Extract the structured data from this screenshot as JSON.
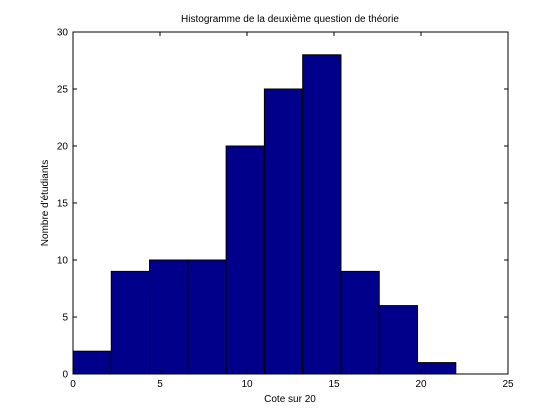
{
  "chart_data": {
    "type": "bar",
    "title": "Histogramme de la deuxième question de théorie",
    "xlabel": "Cote sur 20",
    "ylabel": "Nombre d'étudiants",
    "xlim": [
      0,
      25
    ],
    "ylim": [
      0,
      30
    ],
    "xticks": [
      0,
      5,
      10,
      15,
      20,
      25
    ],
    "yticks": [
      0,
      5,
      10,
      15,
      20,
      25,
      30
    ],
    "bins": [
      {
        "x0": 0.0,
        "x1": 2.2,
        "value": 2
      },
      {
        "x0": 2.2,
        "x1": 4.4,
        "value": 9
      },
      {
        "x0": 4.4,
        "x1": 6.6,
        "value": 10
      },
      {
        "x0": 6.6,
        "x1": 8.8,
        "value": 10
      },
      {
        "x0": 8.8,
        "x1": 11.0,
        "value": 20
      },
      {
        "x0": 11.0,
        "x1": 13.2,
        "value": 25
      },
      {
        "x0": 13.2,
        "x1": 15.4,
        "value": 28
      },
      {
        "x0": 15.4,
        "x1": 17.6,
        "value": 9
      },
      {
        "x0": 17.6,
        "x1": 19.8,
        "value": 6
      },
      {
        "x0": 19.8,
        "x1": 22.0,
        "value": 1
      }
    ],
    "grid": false,
    "bar_color": "#00008B",
    "edge_color": "#000000"
  }
}
